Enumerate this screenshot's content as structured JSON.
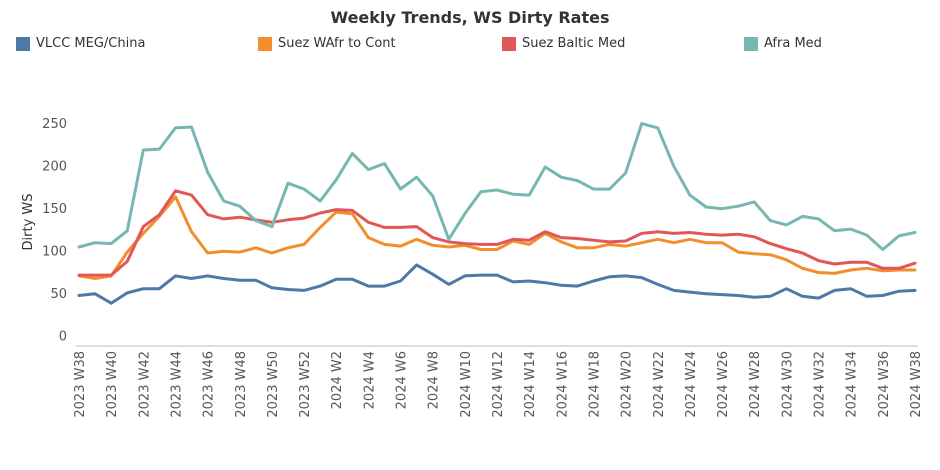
{
  "chart_data": {
    "type": "line",
    "title": "Weekly Trends, WS Dirty Rates",
    "xlabel": "",
    "ylabel": "Dirty WS",
    "ylim": [
      -10,
      265
    ],
    "yticks": [
      0,
      50,
      100,
      150,
      200,
      250
    ],
    "grid": false,
    "legend_position": "top",
    "x": [
      "2023 W38",
      "2023 W39",
      "2023 W40",
      "2023 W41",
      "2023 W42",
      "2023 W43",
      "2023 W44",
      "2023 W45",
      "2023 W46",
      "2023 W47",
      "2023 W48",
      "2023 W49",
      "2023 W50",
      "2023 W51",
      "2023 W52",
      "2024 W1",
      "2024 W2",
      "2024 W3",
      "2024 W4",
      "2024 W5",
      "2024 W6",
      "2024 W7",
      "2024 W8",
      "2024 W9",
      "2024 W10",
      "2024 W11",
      "2024 W12",
      "2024 W13",
      "2024 W14",
      "2024 W15",
      "2024 W16",
      "2024 W17",
      "2024 W18",
      "2024 W19",
      "2024 W20",
      "2024 W21",
      "2024 W22",
      "2024 W23",
      "2024 W24",
      "2024 W25",
      "2024 W26",
      "2024 W27",
      "2024 W28",
      "2024 W29",
      "2024 W30",
      "2024 W31",
      "2024 W32",
      "2024 W33",
      "2024 W34",
      "2024 W35",
      "2024 W36",
      "2024 W37",
      "2024 W38"
    ],
    "xtick_labels": [
      "2023 W38",
      "2023 W40",
      "2023 W42",
      "2023 W44",
      "2023 W46",
      "2023 W48",
      "2023 W50",
      "2023 W52",
      "2024 W2",
      "2024 W4",
      "2024 W6",
      "2024 W8",
      "2024 W10",
      "2024 W12",
      "2024 W14",
      "2024 W16",
      "2024 W18",
      "2024 W20",
      "2024 W22",
      "2024 W24",
      "2024 W26",
      "2024 W28",
      "2024 W30",
      "2024 W32",
      "2024 W34",
      "2024 W36",
      "2024 W38"
    ],
    "series": [
      {
        "name": "VLCC MEG/China",
        "color": "#4e79a7",
        "values": [
          47,
          49,
          38,
          50,
          55,
          55,
          70,
          67,
          70,
          67,
          65,
          65,
          56,
          54,
          53,
          58,
          66,
          66,
          58,
          58,
          64,
          83,
          72,
          60,
          70,
          71,
          71,
          63,
          64,
          62,
          59,
          58,
          64,
          69,
          70,
          68,
          60,
          53,
          51,
          49,
          48,
          47,
          45,
          46,
          55,
          46,
          44,
          53,
          55,
          46,
          47,
          52,
          53
        ]
      },
      {
        "name": "Suez WAfr to Cont",
        "color": "#f28e2b",
        "values": [
          70,
          67,
          70,
          98,
          120,
          140,
          163,
          122,
          97,
          99,
          98,
          103,
          97,
          103,
          107,
          127,
          145,
          143,
          115,
          107,
          105,
          113,
          106,
          104,
          106,
          101,
          101,
          111,
          107,
          120,
          110,
          103,
          103,
          107,
          105,
          109,
          113,
          109,
          113,
          109,
          109,
          98,
          96,
          95,
          89,
          79,
          74,
          73,
          77,
          79,
          76,
          77,
          77
        ]
      },
      {
        "name": "Suez Baltic Med",
        "color": "#e15759",
        "values": [
          71,
          71,
          71,
          87,
          128,
          142,
          170,
          165,
          142,
          137,
          139,
          136,
          133,
          136,
          138,
          144,
          148,
          147,
          133,
          127,
          127,
          128,
          115,
          110,
          108,
          107,
          107,
          113,
          112,
          122,
          115,
          114,
          112,
          110,
          111,
          120,
          122,
          120,
          121,
          119,
          118,
          119,
          116,
          108,
          102,
          97,
          88,
          84,
          86,
          86,
          79,
          79,
          85
        ]
      },
      {
        "name": "Afra Med",
        "color": "#76b7b2",
        "values": [
          104,
          109,
          108,
          123,
          218,
          219,
          244,
          245,
          192,
          158,
          152,
          135,
          128,
          179,
          172,
          158,
          183,
          214,
          195,
          202,
          172,
          186,
          164,
          113,
          143,
          169,
          171,
          166,
          165,
          198,
          186,
          182,
          172,
          172,
          191,
          249,
          244,
          199,
          165,
          151,
          149,
          152,
          157,
          135,
          130,
          140,
          137,
          123,
          125,
          118,
          101,
          117,
          121
        ]
      }
    ]
  }
}
